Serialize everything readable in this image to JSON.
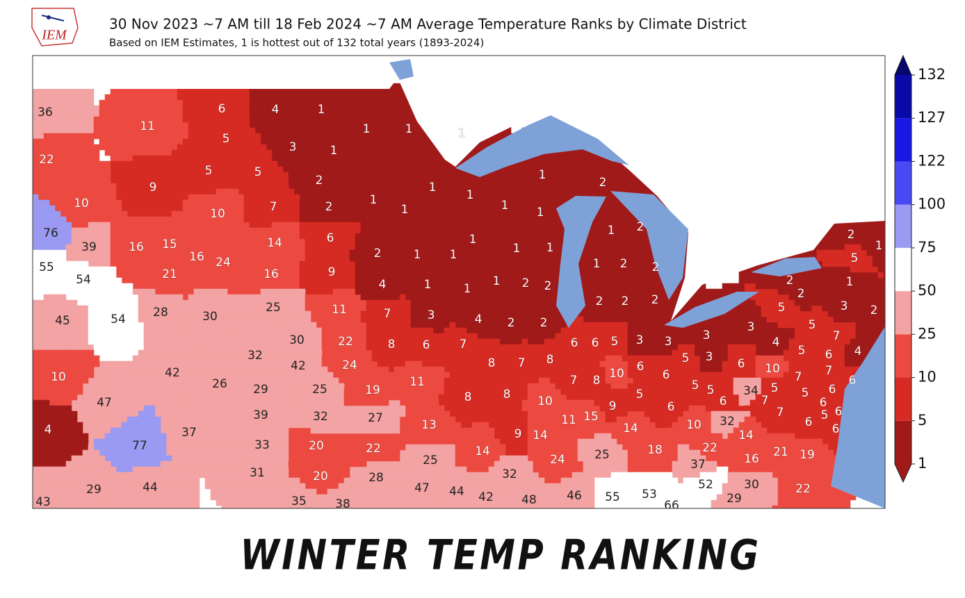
{
  "header": {
    "logo": "IEM",
    "title": "30 Nov 2023 ~7 AM till 18 Feb 2024 ~7 AM Average Temperature Ranks by Climate District",
    "subtitle": "Based on IEM Estimates, 1 is hottest out of 132 total years (1893-2024)"
  },
  "colorbar": {
    "levels": [
      1,
      5,
      10,
      25,
      50,
      75,
      100,
      122,
      127,
      132
    ],
    "colors": [
      "#a11a1a",
      "#d62b23",
      "#ec4a40",
      "#f3a3a3",
      "#ffffff",
      "#9a9af2",
      "#4a4af5",
      "#1818e2",
      "#0a0aa8"
    ],
    "extend_colors": [
      "#a11a1a",
      "#06066e"
    ]
  },
  "districts": [
    36,
    11,
    22,
    9,
    10,
    6,
    4,
    1,
    5,
    3,
    1,
    5,
    5,
    2,
    10,
    7,
    2,
    14,
    6,
    16,
    24,
    16,
    9,
    76,
    39,
    16,
    15,
    21,
    55,
    54,
    45,
    54,
    28,
    30,
    25,
    11,
    30,
    22,
    32,
    42,
    24,
    1,
    1,
    1,
    1,
    1,
    1,
    2,
    1,
    1,
    4,
    1,
    1,
    7,
    3,
    4,
    8,
    6,
    7,
    1,
    1,
    1,
    1,
    1,
    1,
    1,
    2,
    2,
    1,
    2,
    1,
    2,
    1,
    2,
    2,
    2,
    2,
    2,
    2,
    2,
    8,
    7,
    8,
    11,
    8,
    8,
    10,
    13,
    9,
    14,
    25,
    14,
    32,
    24,
    6,
    6,
    5,
    7,
    8,
    10,
    11,
    15,
    9,
    14,
    25,
    18,
    3,
    3,
    3,
    6,
    6,
    5,
    3,
    5,
    5,
    5,
    6,
    10,
    6,
    3,
    4,
    5,
    7,
    5,
    6,
    10,
    6,
    7,
    7,
    4,
    6,
    34,
    5,
    7,
    5,
    6,
    5,
    2,
    2,
    1,
    3,
    2,
    2,
    5,
    1,
    6,
    5,
    6,
    6,
    6,
    7,
    32,
    14,
    22,
    16,
    21,
    19,
    37,
    52,
    30,
    29,
    22,
    55,
    53,
    66,
    46,
    48,
    42,
    44,
    47,
    28,
    20,
    31,
    22,
    20,
    33,
    32,
    27,
    39,
    29,
    25,
    19,
    42,
    26,
    47,
    37,
    77,
    10,
    4,
    29,
    44,
    43,
    35,
    38
  ],
  "footer": {
    "caption": "WINTER TEMP RANKING"
  }
}
